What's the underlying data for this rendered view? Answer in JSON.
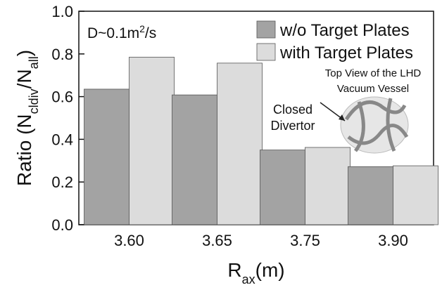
{
  "chart_data": {
    "type": "bar",
    "categories": [
      "3.60",
      "3.65",
      "3.75",
      "3.90"
    ],
    "series": [
      {
        "name": "w/o Target Plates",
        "color": "#a3a3a3",
        "values": [
          0.635,
          0.608,
          0.35,
          0.272
        ]
      },
      {
        "name": "with Target Plates",
        "color": "#dcdcdc",
        "values": [
          0.785,
          0.757,
          0.362,
          0.276
        ]
      }
    ],
    "ylim": [
      0,
      1.0
    ],
    "yticks": [
      {
        "value": 0,
        "label": "0.0"
      },
      {
        "value": 0.2,
        "label": "0.2"
      },
      {
        "value": 0.4,
        "label": "0.4"
      },
      {
        "value": 0.6,
        "label": "0.6"
      },
      {
        "value": 0.8,
        "label": "0.8"
      },
      {
        "value": 1.0,
        "label": "1.0"
      }
    ],
    "ylabel": [
      "Ratio (N",
      "cldiv",
      "/N",
      "all",
      ")"
    ],
    "xlabel": [
      "R",
      "ax",
      "(m)"
    ],
    "annotation": [
      "D~0.1m",
      "2",
      "/s"
    ],
    "inset_title": [
      "Top View of the LHD",
      "Vacuum Vessel"
    ],
    "inset_label": [
      "Closed",
      "Divertor"
    ],
    "legend": "upper right",
    "grid": false
  }
}
